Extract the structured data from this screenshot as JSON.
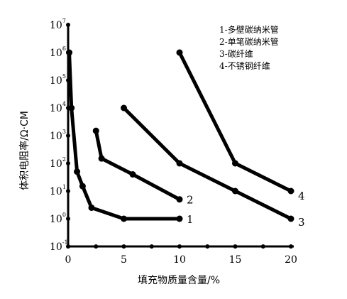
{
  "chart_data": {
    "type": "line",
    "title": "",
    "xlabel": "填充物质量含量/%",
    "ylabel": "体积电阻率/Ω·CM",
    "xlim": [
      0,
      20
    ],
    "ylim_log10": [
      -1,
      7
    ],
    "y_scale": "log",
    "x_ticks": [
      "0",
      "5",
      "10",
      "15",
      "20"
    ],
    "y_tick_exponents": [
      "7",
      "6",
      "5",
      "4",
      "3",
      "2",
      "1",
      "0",
      "-1"
    ],
    "y_tick_base": "10",
    "legend": [
      "1-多壁碳纳米管",
      "2-单笔碳纳米管",
      "3-碳纤维",
      "4-不锈钢纤维"
    ],
    "series": [
      {
        "label": "1",
        "points": [
          [
            0.1,
            1000000
          ],
          [
            0.3,
            10000
          ],
          [
            0.8,
            50
          ],
          [
            1.3,
            15
          ],
          [
            2.1,
            2.5
          ],
          [
            5.0,
            1
          ],
          [
            10.0,
            1
          ]
        ]
      },
      {
        "label": "2",
        "points": [
          [
            2.5,
            1500
          ],
          [
            3.0,
            150
          ],
          [
            5.8,
            40
          ],
          [
            10.0,
            5
          ]
        ]
      },
      {
        "label": "3",
        "points": [
          [
            5.0,
            10000
          ],
          [
            10.0,
            100
          ],
          [
            15.0,
            10
          ],
          [
            20.0,
            1
          ]
        ]
      },
      {
        "label": "4",
        "points": [
          [
            10.0,
            1000000
          ],
          [
            15.0,
            100
          ],
          [
            20.0,
            10
          ]
        ]
      }
    ]
  }
}
